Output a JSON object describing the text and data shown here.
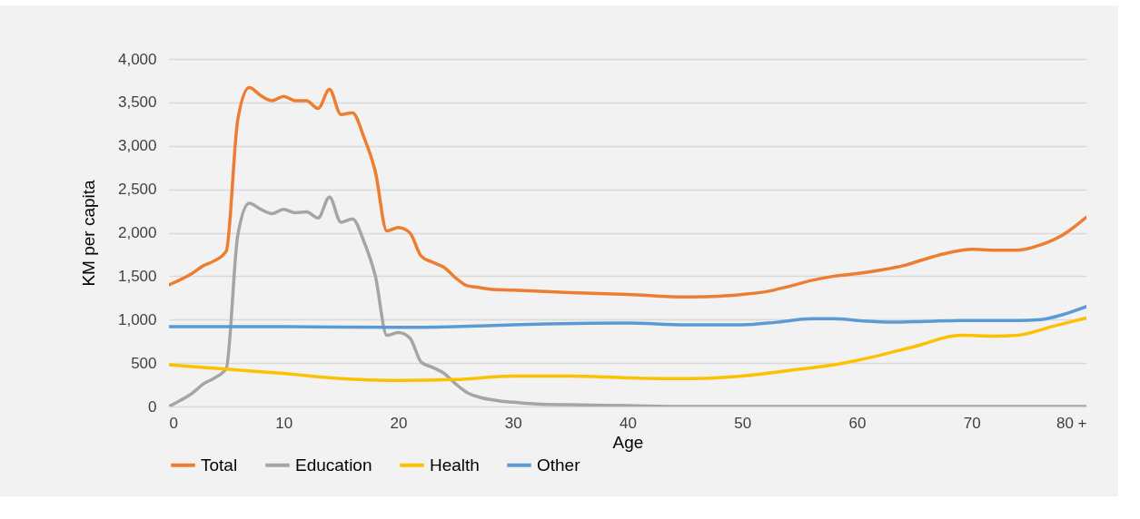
{
  "chart_data": {
    "type": "line",
    "xlabel": "Age",
    "ylabel": "KM  per capita",
    "xlim": [
      0,
      80
    ],
    "xticks": [
      0,
      10,
      20,
      30,
      40,
      50,
      60,
      70,
      {
        "value": 80,
        "label": "80 +"
      }
    ],
    "ylim": [
      0,
      4000
    ],
    "yticks": [
      0,
      500,
      {
        "value": 1000,
        "label": "1,000"
      },
      {
        "value": 1500,
        "label": "1,500"
      },
      {
        "value": 2000,
        "label": "2,000"
      },
      {
        "value": 2500,
        "label": "2,500"
      },
      {
        "value": 3000,
        "label": "3,000"
      },
      {
        "value": 3500,
        "label": "3,500"
      },
      {
        "value": 4000,
        "label": "4,000"
      }
    ],
    "grid": "y",
    "legend": "bottom",
    "line_style": "solid",
    "marker": "none",
    "series": [
      {
        "name": "Total",
        "color": "#ed7d31",
        "x": [
          0,
          1,
          2,
          3,
          4,
          5,
          6,
          7,
          8,
          9,
          10,
          11,
          12,
          13,
          14,
          15,
          16,
          17,
          18,
          19,
          20,
          21,
          22,
          23,
          24,
          25,
          26,
          27,
          28,
          30,
          35,
          40,
          45,
          48,
          50,
          52,
          54,
          56,
          58,
          60,
          62,
          64,
          66,
          68,
          70,
          72,
          74,
          76,
          78,
          80
        ],
        "values": [
          1400,
          1460,
          1530,
          1620,
          1680,
          1790,
          3300,
          3670,
          3580,
          3520,
          3570,
          3520,
          3520,
          3430,
          3650,
          3360,
          3380,
          3100,
          2700,
          2020,
          2060,
          2000,
          1730,
          1660,
          1600,
          1480,
          1390,
          1370,
          1350,
          1340,
          1310,
          1290,
          1260,
          1270,
          1290,
          1320,
          1380,
          1450,
          1500,
          1530,
          1570,
          1620,
          1700,
          1770,
          1810,
          1800,
          1800,
          1860,
          1980,
          2180
        ]
      },
      {
        "name": "Education",
        "color": "#a5a5a5",
        "x": [
          0,
          1,
          2,
          3,
          4,
          5,
          6,
          7,
          8,
          9,
          10,
          11,
          12,
          13,
          14,
          15,
          16,
          17,
          18,
          19,
          20,
          21,
          22,
          23,
          24,
          25,
          26,
          27,
          28,
          29,
          30,
          32,
          35,
          40,
          45,
          50,
          60,
          70,
          80
        ],
        "values": [
          0,
          70,
          150,
          260,
          330,
          440,
          1970,
          2340,
          2270,
          2220,
          2270,
          2230,
          2240,
          2170,
          2410,
          2120,
          2160,
          1900,
          1500,
          820,
          850,
          790,
          510,
          450,
          380,
          260,
          160,
          110,
          80,
          60,
          50,
          30,
          20,
          10,
          0,
          0,
          0,
          0,
          0
        ]
      },
      {
        "name": "Health",
        "color": "#ffc000",
        "x": [
          0,
          5,
          10,
          15,
          19,
          20,
          25,
          30,
          35,
          40,
          45,
          50,
          55,
          58,
          60,
          65,
          69,
          72,
          74,
          77,
          80
        ],
        "values": [
          480,
          430,
          380,
          320,
          300,
          300,
          310,
          350,
          350,
          330,
          320,
          350,
          430,
          480,
          530,
          690,
          820,
          810,
          820,
          920,
          1020
        ]
      },
      {
        "name": "Other",
        "color": "#5b9bd5",
        "x": [
          0,
          10,
          20,
          25,
          30,
          40,
          45,
          50,
          53,
          56,
          58,
          60,
          63,
          66,
          69,
          74,
          76,
          78,
          80
        ],
        "values": [
          920,
          920,
          910,
          920,
          940,
          960,
          940,
          940,
          970,
          1010,
          1010,
          990,
          970,
          980,
          990,
          990,
          1000,
          1060,
          1150
        ]
      }
    ]
  }
}
